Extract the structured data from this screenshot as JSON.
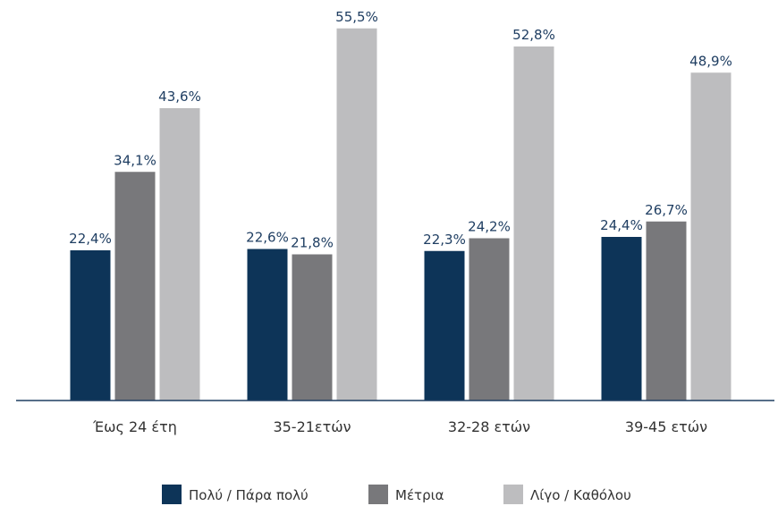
{
  "chart_data": {
    "type": "bar",
    "categories": [
      "Έως 24 έτη",
      "35-21ετών",
      "32-28 ετών",
      "39-45 ετών"
    ],
    "series": [
      {
        "name": "Πολύ / Πάρα πολύ",
        "color": "#0d3458",
        "values": [
          22.4,
          22.6,
          22.3,
          24.4
        ],
        "value_labels": [
          "22,4%",
          "22,6%",
          "22,3%",
          "24,4%"
        ]
      },
      {
        "name": "Μέτρια",
        "color": "#78787b",
        "values": [
          34.1,
          21.8,
          24.2,
          26.7
        ],
        "value_labels": [
          "34,1%",
          "21,8%",
          "24,2%",
          "26,7%"
        ]
      },
      {
        "name": "Λίγο / Καθόλου",
        "color": "#bdbdbf",
        "values": [
          43.6,
          55.5,
          52.8,
          48.9
        ],
        "value_labels": [
          "43,6%",
          "55,5%",
          "52,8%",
          "48,9%"
        ]
      }
    ],
    "legend": "bottom"
  }
}
